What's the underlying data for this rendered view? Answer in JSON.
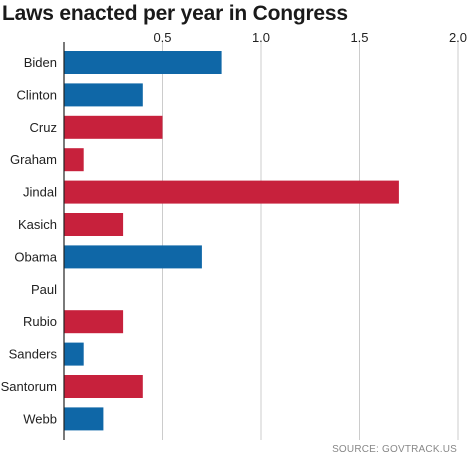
{
  "chart_data": {
    "type": "bar",
    "orientation": "horizontal",
    "title": "Laws enacted per year in Congress",
    "source": "SOURCE: GOVTRACK.US",
    "xlabel": "",
    "ylabel": "",
    "xlim": [
      0,
      2.0
    ],
    "xticks": [
      "0.5",
      "1.0",
      "1.5",
      "2.0"
    ],
    "xtick_values": [
      0.5,
      1.0,
      1.5,
      2.0
    ],
    "grid": true,
    "categories": [
      "Biden",
      "Clinton",
      "Cruz",
      "Graham",
      "Jindal",
      "Kasich",
      "Obama",
      "Paul",
      "Rubio",
      "Sanders",
      "Santorum",
      "Webb"
    ],
    "values": [
      0.8,
      0.4,
      0.5,
      0.1,
      1.7,
      0.3,
      0.7,
      0.0,
      0.3,
      0.1,
      0.4,
      0.2
    ],
    "party": [
      "D",
      "D",
      "R",
      "R",
      "R",
      "R",
      "D",
      "R",
      "R",
      "D",
      "R",
      "D"
    ],
    "colors": {
      "D": "#0f67a7",
      "R": "#c7213c",
      "grid": "#cccccc",
      "axis": "#222222"
    }
  }
}
